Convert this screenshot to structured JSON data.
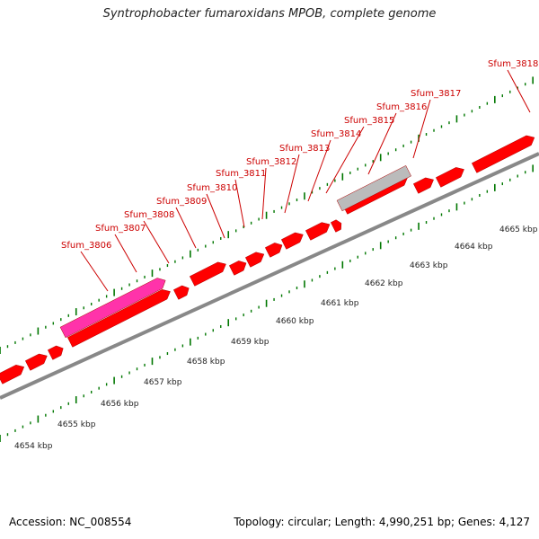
{
  "title": "Syntrophobacter fumaroxidans MPOB, complete genome",
  "footer": {
    "accession": "Accession: NC_008554",
    "summary": "Topology: circular; Length: 4,990,251 bp; Genes: 4,127"
  },
  "colors": {
    "gene": "#ff0000",
    "gene_highlight": "#ff33aa",
    "gene_other": "#bbbbbb",
    "backbone": "#888888",
    "tick": "#007700",
    "label": "#cc0000",
    "kbp_label": "#222222"
  },
  "genes": [
    {
      "name": "Sfum_3806"
    },
    {
      "name": "Sfum_3807"
    },
    {
      "name": "Sfum_3808"
    },
    {
      "name": "Sfum_3809"
    },
    {
      "name": "Sfum_3810"
    },
    {
      "name": "Sfum_3811"
    },
    {
      "name": "Sfum_3812"
    },
    {
      "name": "Sfum_3813"
    },
    {
      "name": "Sfum_3814"
    },
    {
      "name": "Sfum_3815"
    },
    {
      "name": "Sfum_3816"
    },
    {
      "name": "Sfum_3817"
    },
    {
      "name": "Sfum_3818"
    }
  ],
  "scale": [
    "4654 kbp",
    "4655 kbp",
    "4656 kbp",
    "4657 kbp",
    "4658 kbp",
    "4659 kbp",
    "4660 kbp",
    "4661 kbp",
    "4662 kbp",
    "4663 kbp",
    "4664 kbp",
    "4665 kbp"
  ]
}
